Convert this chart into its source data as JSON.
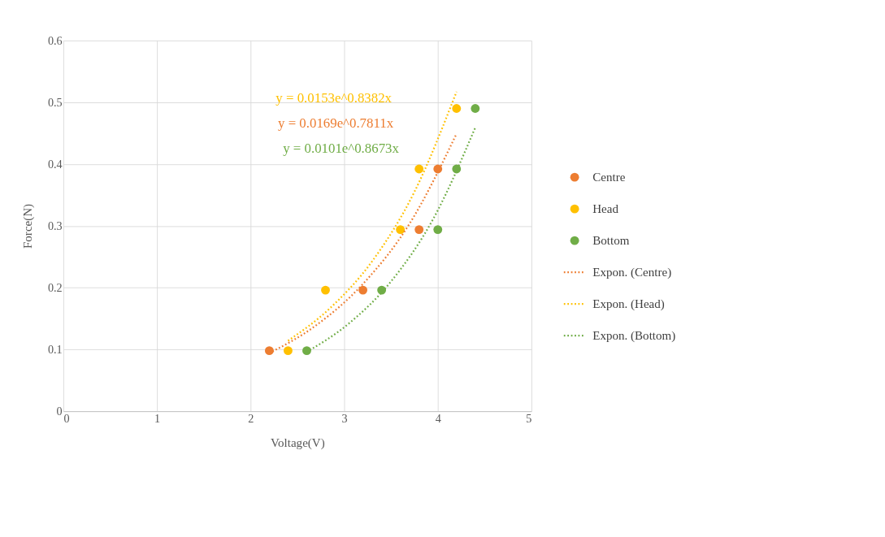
{
  "chart_data": {
    "type": "scatter",
    "xlabel": "Voltage(V)",
    "ylabel": "Force(N)",
    "xlim": [
      0,
      5
    ],
    "xticks": [
      0,
      1,
      2,
      3,
      4,
      5
    ],
    "ylim": [
      0,
      0.6
    ],
    "yticks": [
      0,
      0.1,
      0.2,
      0.3,
      0.4,
      0.5,
      0.6
    ],
    "grid": true,
    "legend": "right",
    "marker": "circle",
    "series": [
      {
        "name": "Centre",
        "color": "#ed7d31",
        "x": [
          2.2,
          3.2,
          3.8,
          4.0
        ],
        "values": [
          0.098,
          0.196,
          0.294,
          0.392
        ]
      },
      {
        "name": "Head",
        "color": "#ffc000",
        "x": [
          2.4,
          2.8,
          3.6,
          3.8,
          4.2
        ],
        "values": [
          0.098,
          0.196,
          0.294,
          0.392,
          0.49
        ]
      },
      {
        "name": "Bottom",
        "color": "#70ad47",
        "x": [
          2.6,
          3.4,
          4.0,
          4.2,
          4.4
        ],
        "values": [
          0.098,
          0.196,
          0.294,
          0.392,
          0.49
        ]
      },
      {
        "name": "Expon. (Centre)",
        "type": "line",
        "line_style": "dotted",
        "marker": "none",
        "color": "#ed7d31",
        "x": [
          2.2,
          2.7,
          3.2,
          3.7,
          4.2
        ],
        "values": [
          0.094,
          0.139,
          0.206,
          0.304,
          0.449
        ]
      },
      {
        "name": "Expon. (Head)",
        "type": "line",
        "line_style": "dotted",
        "marker": "none",
        "color": "#ffc000",
        "x": [
          2.4,
          2.85,
          3.3,
          3.75,
          4.2
        ],
        "values": [
          0.114,
          0.167,
          0.243,
          0.355,
          0.517
        ]
      },
      {
        "name": "Expon. (Bottom)",
        "type": "line",
        "line_style": "dotted",
        "marker": "none",
        "color": "#70ad47",
        "x": [
          2.6,
          3.05,
          3.5,
          3.95,
          4.4
        ],
        "values": [
          0.096,
          0.142,
          0.21,
          0.311,
          0.459
        ]
      }
    ],
    "annotations": [
      "y = 0.0153e^0.8382x",
      "y = 0.0169e^0.7811x",
      "y = 0.0101e^0.8673x"
    ]
  }
}
